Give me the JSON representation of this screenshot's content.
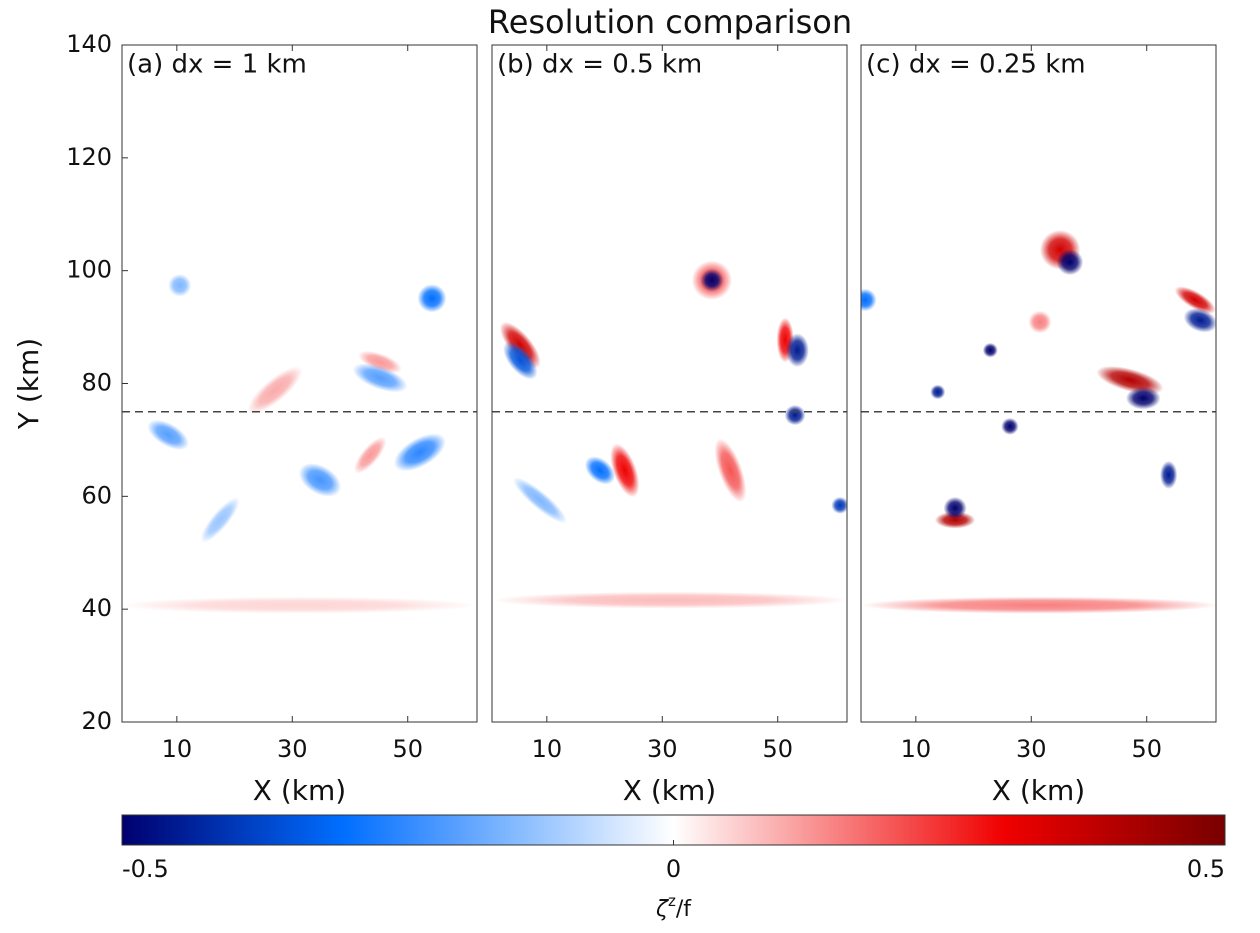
{
  "title": "Resolution comparison",
  "colorbar": {
    "lim": [
      -0.5,
      0.5
    ],
    "ticks": [
      -0.5,
      0,
      0.5
    ],
    "label": {
      "symbol": "ζ",
      "superscript": "z",
      "suffix": "/f"
    }
  },
  "chart_data": [
    {
      "type": "heatmap",
      "label": "(a) dx = 1 km",
      "xlabel": "X (km)",
      "ylabel": "Y (km)",
      "xlim": [
        0.5,
        62
      ],
      "ylim": [
        20,
        140
      ],
      "xticks": [
        10,
        30,
        50
      ],
      "yticks": [
        20,
        40,
        60,
        80,
        100,
        120,
        140
      ],
      "hline": 75,
      "features": [
        {
          "x": 31,
          "y": 40.7,
          "rx": 31,
          "ry": 1.5,
          "angle": 0,
          "value": 0.05
        },
        {
          "x": 27,
          "y": 78.8,
          "rx": 6,
          "ry": 2,
          "angle": 40,
          "value": 0.1
        },
        {
          "x": 43.5,
          "y": 67.3,
          "rx": 4,
          "ry": 1.5,
          "angle": 50,
          "value": 0.12
        },
        {
          "x": 45.2,
          "y": 83.8,
          "rx": 4,
          "ry": 1.5,
          "angle": -20,
          "value": 0.12
        },
        {
          "x": 54.2,
          "y": 95.1,
          "rx": 2.5,
          "ry": 2.5,
          "angle": 0,
          "value": -0.3
        },
        {
          "x": 10.5,
          "y": 97.4,
          "rx": 2,
          "ry": 2,
          "angle": 0,
          "value": -0.15
        },
        {
          "x": 45.2,
          "y": 81,
          "rx": 5,
          "ry": 2,
          "angle": -20,
          "value": -0.2
        },
        {
          "x": 8.5,
          "y": 70.9,
          "rx": 4,
          "ry": 2,
          "angle": -30,
          "value": -0.2
        },
        {
          "x": 52.1,
          "y": 67.8,
          "rx": 5,
          "ry": 2.5,
          "angle": 30,
          "value": -0.25
        },
        {
          "x": 34.8,
          "y": 62.9,
          "rx": 4,
          "ry": 2.5,
          "angle": -30,
          "value": -0.22
        },
        {
          "x": 17.5,
          "y": 55.8,
          "rx": 5,
          "ry": 1.5,
          "angle": 50,
          "value": -0.12
        }
      ]
    },
    {
      "type": "heatmap",
      "label": "(b) dx = 0.5 km",
      "xlabel": "X (km)",
      "xlim": [
        0.5,
        62
      ],
      "ylim": [
        20,
        140
      ],
      "xticks": [
        10,
        30,
        50
      ],
      "hline": 75,
      "features": [
        {
          "x": 31.4,
          "y": 41.6,
          "rx": 31,
          "ry": 1.5,
          "angle": 0,
          "value": 0.08
        },
        {
          "x": 38.6,
          "y": 98.3,
          "rx": 3.5,
          "ry": 3.5,
          "angle": 0,
          "value": 0.2
        },
        {
          "x": 38.6,
          "y": 98.3,
          "rx": 2,
          "ry": 2,
          "angle": 0,
          "value": -0.5
        },
        {
          "x": 51.3,
          "y": 87.7,
          "rx": 1.5,
          "ry": 4,
          "angle": 0,
          "value": 0.3
        },
        {
          "x": 53.4,
          "y": 85.9,
          "rx": 2,
          "ry": 3,
          "angle": 0,
          "value": -0.45
        },
        {
          "x": 53,
          "y": 74.4,
          "rx": 1.8,
          "ry": 1.8,
          "angle": 0,
          "value": -0.45
        },
        {
          "x": 5.4,
          "y": 86.8,
          "rx": 5,
          "ry": 2,
          "angle": -50,
          "value": 0.35
        },
        {
          "x": 5.4,
          "y": 84.1,
          "rx": 4,
          "ry": 2,
          "angle": -50,
          "value": -0.35
        },
        {
          "x": 23.5,
          "y": 64.6,
          "rx": 2,
          "ry": 5,
          "angle": 20,
          "value": 0.3
        },
        {
          "x": 19.2,
          "y": 64.6,
          "rx": 3,
          "ry": 2,
          "angle": -40,
          "value": -0.3
        },
        {
          "x": 41.8,
          "y": 64.6,
          "rx": 2,
          "ry": 6,
          "angle": 20,
          "value": 0.2
        },
        {
          "x": 60.8,
          "y": 58.4,
          "rx": 1.5,
          "ry": 1.5,
          "angle": 0,
          "value": -0.4
        },
        {
          "x": 8.8,
          "y": 59.3,
          "rx": 6,
          "ry": 1.5,
          "angle": -40,
          "value": -0.15
        }
      ]
    },
    {
      "type": "heatmap",
      "label": "(c) dx = 0.25 km",
      "xlabel": "X (km)",
      "xlim": [
        0.5,
        62
      ],
      "ylim": [
        20,
        140
      ],
      "xticks": [
        10,
        30,
        50
      ],
      "hline": 75,
      "features": [
        {
          "x": 31.5,
          "y": 40.7,
          "rx": 31,
          "ry": 1.5,
          "angle": 0,
          "value": 0.15
        },
        {
          "x": 35,
          "y": 103.7,
          "rx": 3.5,
          "ry": 3.5,
          "angle": 0,
          "value": 0.35
        },
        {
          "x": 36.7,
          "y": 101.5,
          "rx": 2.3,
          "ry": 2.3,
          "angle": 0,
          "value": -0.5
        },
        {
          "x": 47.1,
          "y": 80.6,
          "rx": 6,
          "ry": 2,
          "angle": -15,
          "value": 0.4
        },
        {
          "x": 49.4,
          "y": 77.4,
          "rx": 3,
          "ry": 2,
          "angle": 0,
          "value": -0.5
        },
        {
          "x": 58.4,
          "y": 94.8,
          "rx": 4,
          "ry": 1.5,
          "angle": -30,
          "value": 0.35
        },
        {
          "x": 59.3,
          "y": 91.2,
          "rx": 3,
          "ry": 2,
          "angle": -20,
          "value": -0.45
        },
        {
          "x": 31.5,
          "y": 90.9,
          "rx": 2,
          "ry": 2,
          "angle": 0,
          "value": 0.15
        },
        {
          "x": 22.9,
          "y": 85.9,
          "rx": 1.3,
          "ry": 1.3,
          "angle": 0,
          "value": -0.5
        },
        {
          "x": 13.8,
          "y": 78.5,
          "rx": 1.3,
          "ry": 1.3,
          "angle": 0,
          "value": -0.45
        },
        {
          "x": 26.3,
          "y": 72.4,
          "rx": 1.5,
          "ry": 1.5,
          "angle": 0,
          "value": -0.5
        },
        {
          "x": 16.8,
          "y": 55.8,
          "rx": 3.5,
          "ry": 1.5,
          "angle": 0,
          "value": 0.4
        },
        {
          "x": 16.8,
          "y": 57.9,
          "rx": 2,
          "ry": 2,
          "angle": 0,
          "value": -0.5
        },
        {
          "x": 53.8,
          "y": 63.8,
          "rx": 1.5,
          "ry": 2.5,
          "angle": 0,
          "value": -0.45
        },
        {
          "x": 1.2,
          "y": 94.8,
          "rx": 2,
          "ry": 2,
          "angle": 0,
          "value": -0.3
        }
      ]
    }
  ]
}
